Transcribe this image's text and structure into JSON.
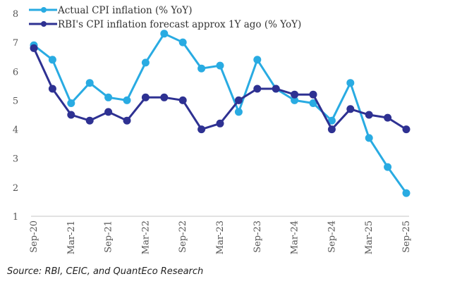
{
  "chart_data": {
    "type": "line",
    "title": "",
    "xlabel": "",
    "ylabel": "",
    "ylim": [
      1,
      8
    ],
    "yticks": [
      1,
      2,
      3,
      4,
      5,
      6,
      7,
      8
    ],
    "grid": false,
    "legend_position": "top-left",
    "x": [
      "Sep-20",
      "Dec-20",
      "Mar-21",
      "Jun-21",
      "Sep-21",
      "Dec-21",
      "Mar-22",
      "Jun-22",
      "Sep-22",
      "Dec-22",
      "Mar-23",
      "Jun-23",
      "Sep-23",
      "Dec-23",
      "Mar-24",
      "Jun-24",
      "Sep-24",
      "Dec-24",
      "Mar-25",
      "Jun-25",
      "Sep-25"
    ],
    "xtick_labels": [
      "Sep-20",
      "Mar-21",
      "Sep-21",
      "Mar-22",
      "Sep-22",
      "Mar-23",
      "Sep-23",
      "Mar-24",
      "Sep-24",
      "Mar-25",
      "Sep-25"
    ],
    "series": [
      {
        "name": "Actual CPI inflation (% YoY)",
        "color": "#29ABE2",
        "values": [
          6.9,
          6.4,
          4.9,
          5.6,
          5.1,
          5.0,
          6.3,
          7.3,
          7.0,
          6.1,
          6.2,
          4.6,
          6.4,
          5.4,
          5.0,
          4.9,
          4.3,
          5.6,
          3.7,
          2.7,
          1.8
        ]
      },
      {
        "name": "RBI's CPI inflation forecast approx 1Y ago (% YoY)",
        "color": "#2E3192",
        "values": [
          6.8,
          5.4,
          4.5,
          4.3,
          4.6,
          4.3,
          5.1,
          5.1,
          5.0,
          4.0,
          4.2,
          5.0,
          5.4,
          5.4,
          5.2,
          5.2,
          4.0,
          4.7,
          4.5,
          4.4,
          4.0
        ]
      }
    ]
  },
  "source": "Source: RBI, CEIC, and QuantEco Research"
}
